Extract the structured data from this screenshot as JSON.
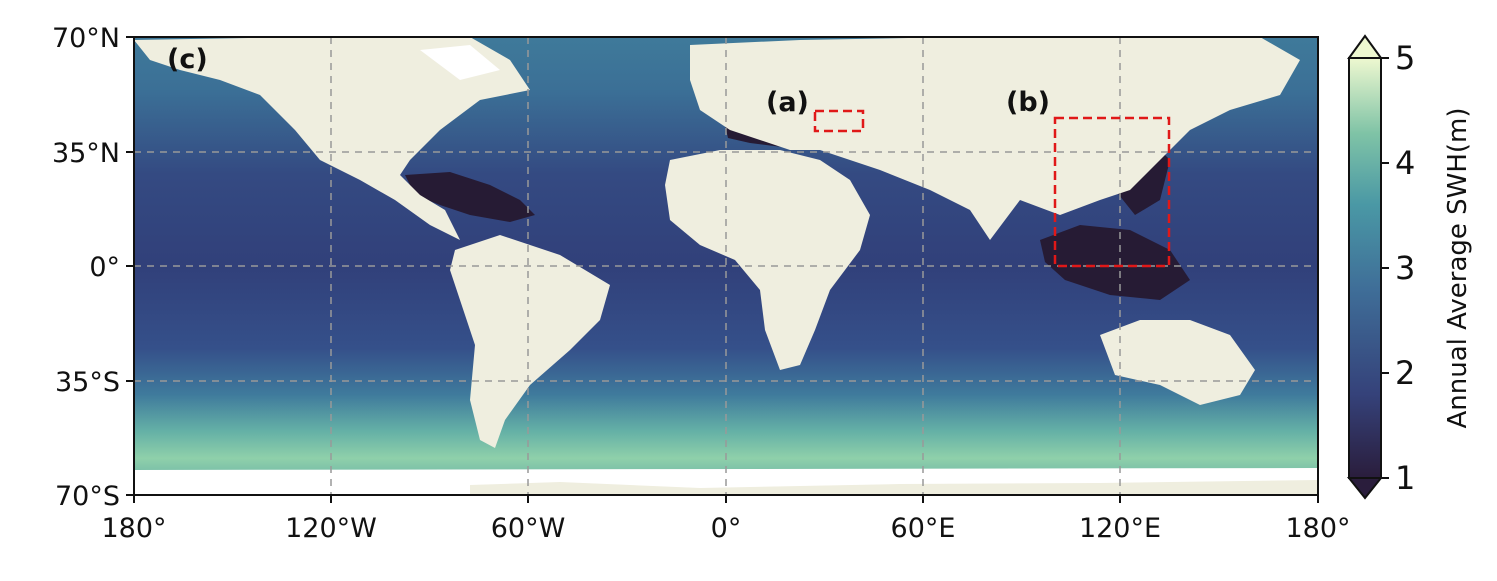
{
  "map": {
    "colorbar": {
      "title": "Annual Average SWH(m)",
      "ticks": [
        "1",
        "2",
        "3",
        "4",
        "5"
      ],
      "colors": [
        "#2a1d3c",
        "#35427a",
        "#3f6e98",
        "#4a98a5",
        "#7fc3a6",
        "#eef8d0"
      ]
    },
    "lat_ticks": [
      "70°N",
      "35°N",
      "0°",
      "35°S",
      "70°S"
    ],
    "lon_ticks": [
      "180°",
      "120°W",
      "60°W",
      "0°",
      "60°E",
      "120°E",
      "180°"
    ],
    "panels": {
      "a": "(a)",
      "b": "(b)",
      "c": "(c)"
    },
    "colors": {
      "land": "#efeedf",
      "ice": "#ffffff",
      "box": "#e01818",
      "grid": "#999999"
    }
  }
}
